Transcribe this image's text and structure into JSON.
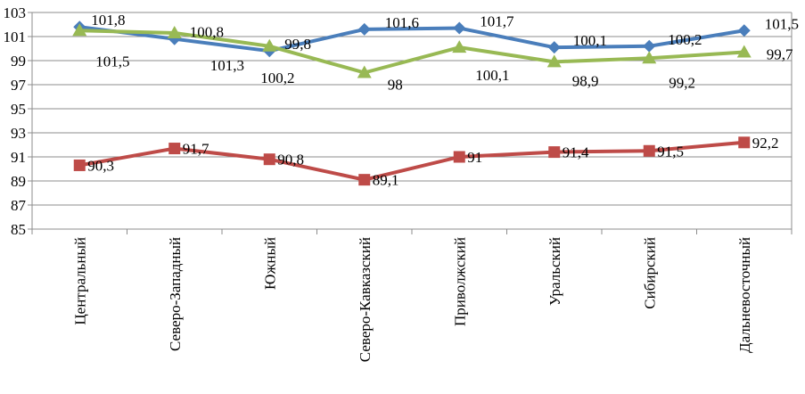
{
  "chart_data": {
    "type": "line",
    "categories": [
      "Центральный",
      "Северо-Западный",
      "Южный",
      "Северо-Кавказский",
      "Приволжский",
      "Уральский",
      "Сибирский",
      "Дальневосточный"
    ],
    "ylim": [
      85,
      103
    ],
    "yticks": [
      85,
      87,
      89,
      91,
      93,
      95,
      97,
      99,
      101,
      103
    ],
    "grid": true,
    "legend": "none",
    "xlabel": "",
    "ylabel": "",
    "title": "",
    "series": [
      {
        "color": "#4a7ebb",
        "marker": "diamond",
        "values": [
          101.8,
          100.8,
          99.8,
          101.6,
          101.7,
          100.1,
          100.2,
          101.5
        ],
        "labels": [
          "101,8",
          "100,8",
          "99,8",
          "101,6",
          "101,7",
          "100,1",
          "100,2",
          "101,5"
        ]
      },
      {
        "color": "#be4b48",
        "marker": "square",
        "values": [
          90.3,
          91.7,
          90.8,
          89.1,
          91.0,
          91.4,
          91.5,
          92.2
        ],
        "labels": [
          "90,3",
          "91,7",
          "90,8",
          "89,1",
          "91",
          "91,4",
          "91,5",
          "92,2"
        ]
      },
      {
        "color": "#98b954",
        "marker": "triangle",
        "values": [
          101.5,
          101.3,
          100.2,
          98.0,
          100.1,
          98.9,
          99.2,
          99.7
        ],
        "labels": [
          "101,5",
          "101,3",
          "100,2",
          "98",
          "100,1",
          "98,9",
          "99,2",
          "99,7"
        ]
      }
    ]
  }
}
